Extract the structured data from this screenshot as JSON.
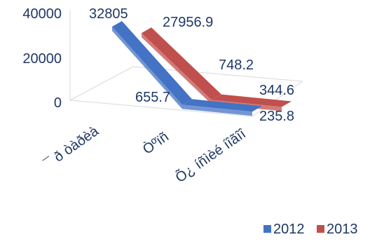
{
  "chart_data": {
    "type": "line",
    "style": "3d",
    "categories": [
      "¯ ð òàðèà",
      "Òºïñ",
      "Õ¿ íñìèé íîãîî"
    ],
    "series": [
      {
        "name": "2012",
        "values": [
          32805,
          655.7,
          235.8
        ],
        "color": "#4472c4"
      },
      {
        "name": "2013",
        "values": [
          27956.9,
          748.2,
          344.6
        ],
        "color": "#c0504d"
      }
    ],
    "y_ticks": [
      "40000",
      "20000",
      "0"
    ],
    "ylim": [
      0,
      40000
    ],
    "legend_position": "bottom-right",
    "grid": false
  }
}
